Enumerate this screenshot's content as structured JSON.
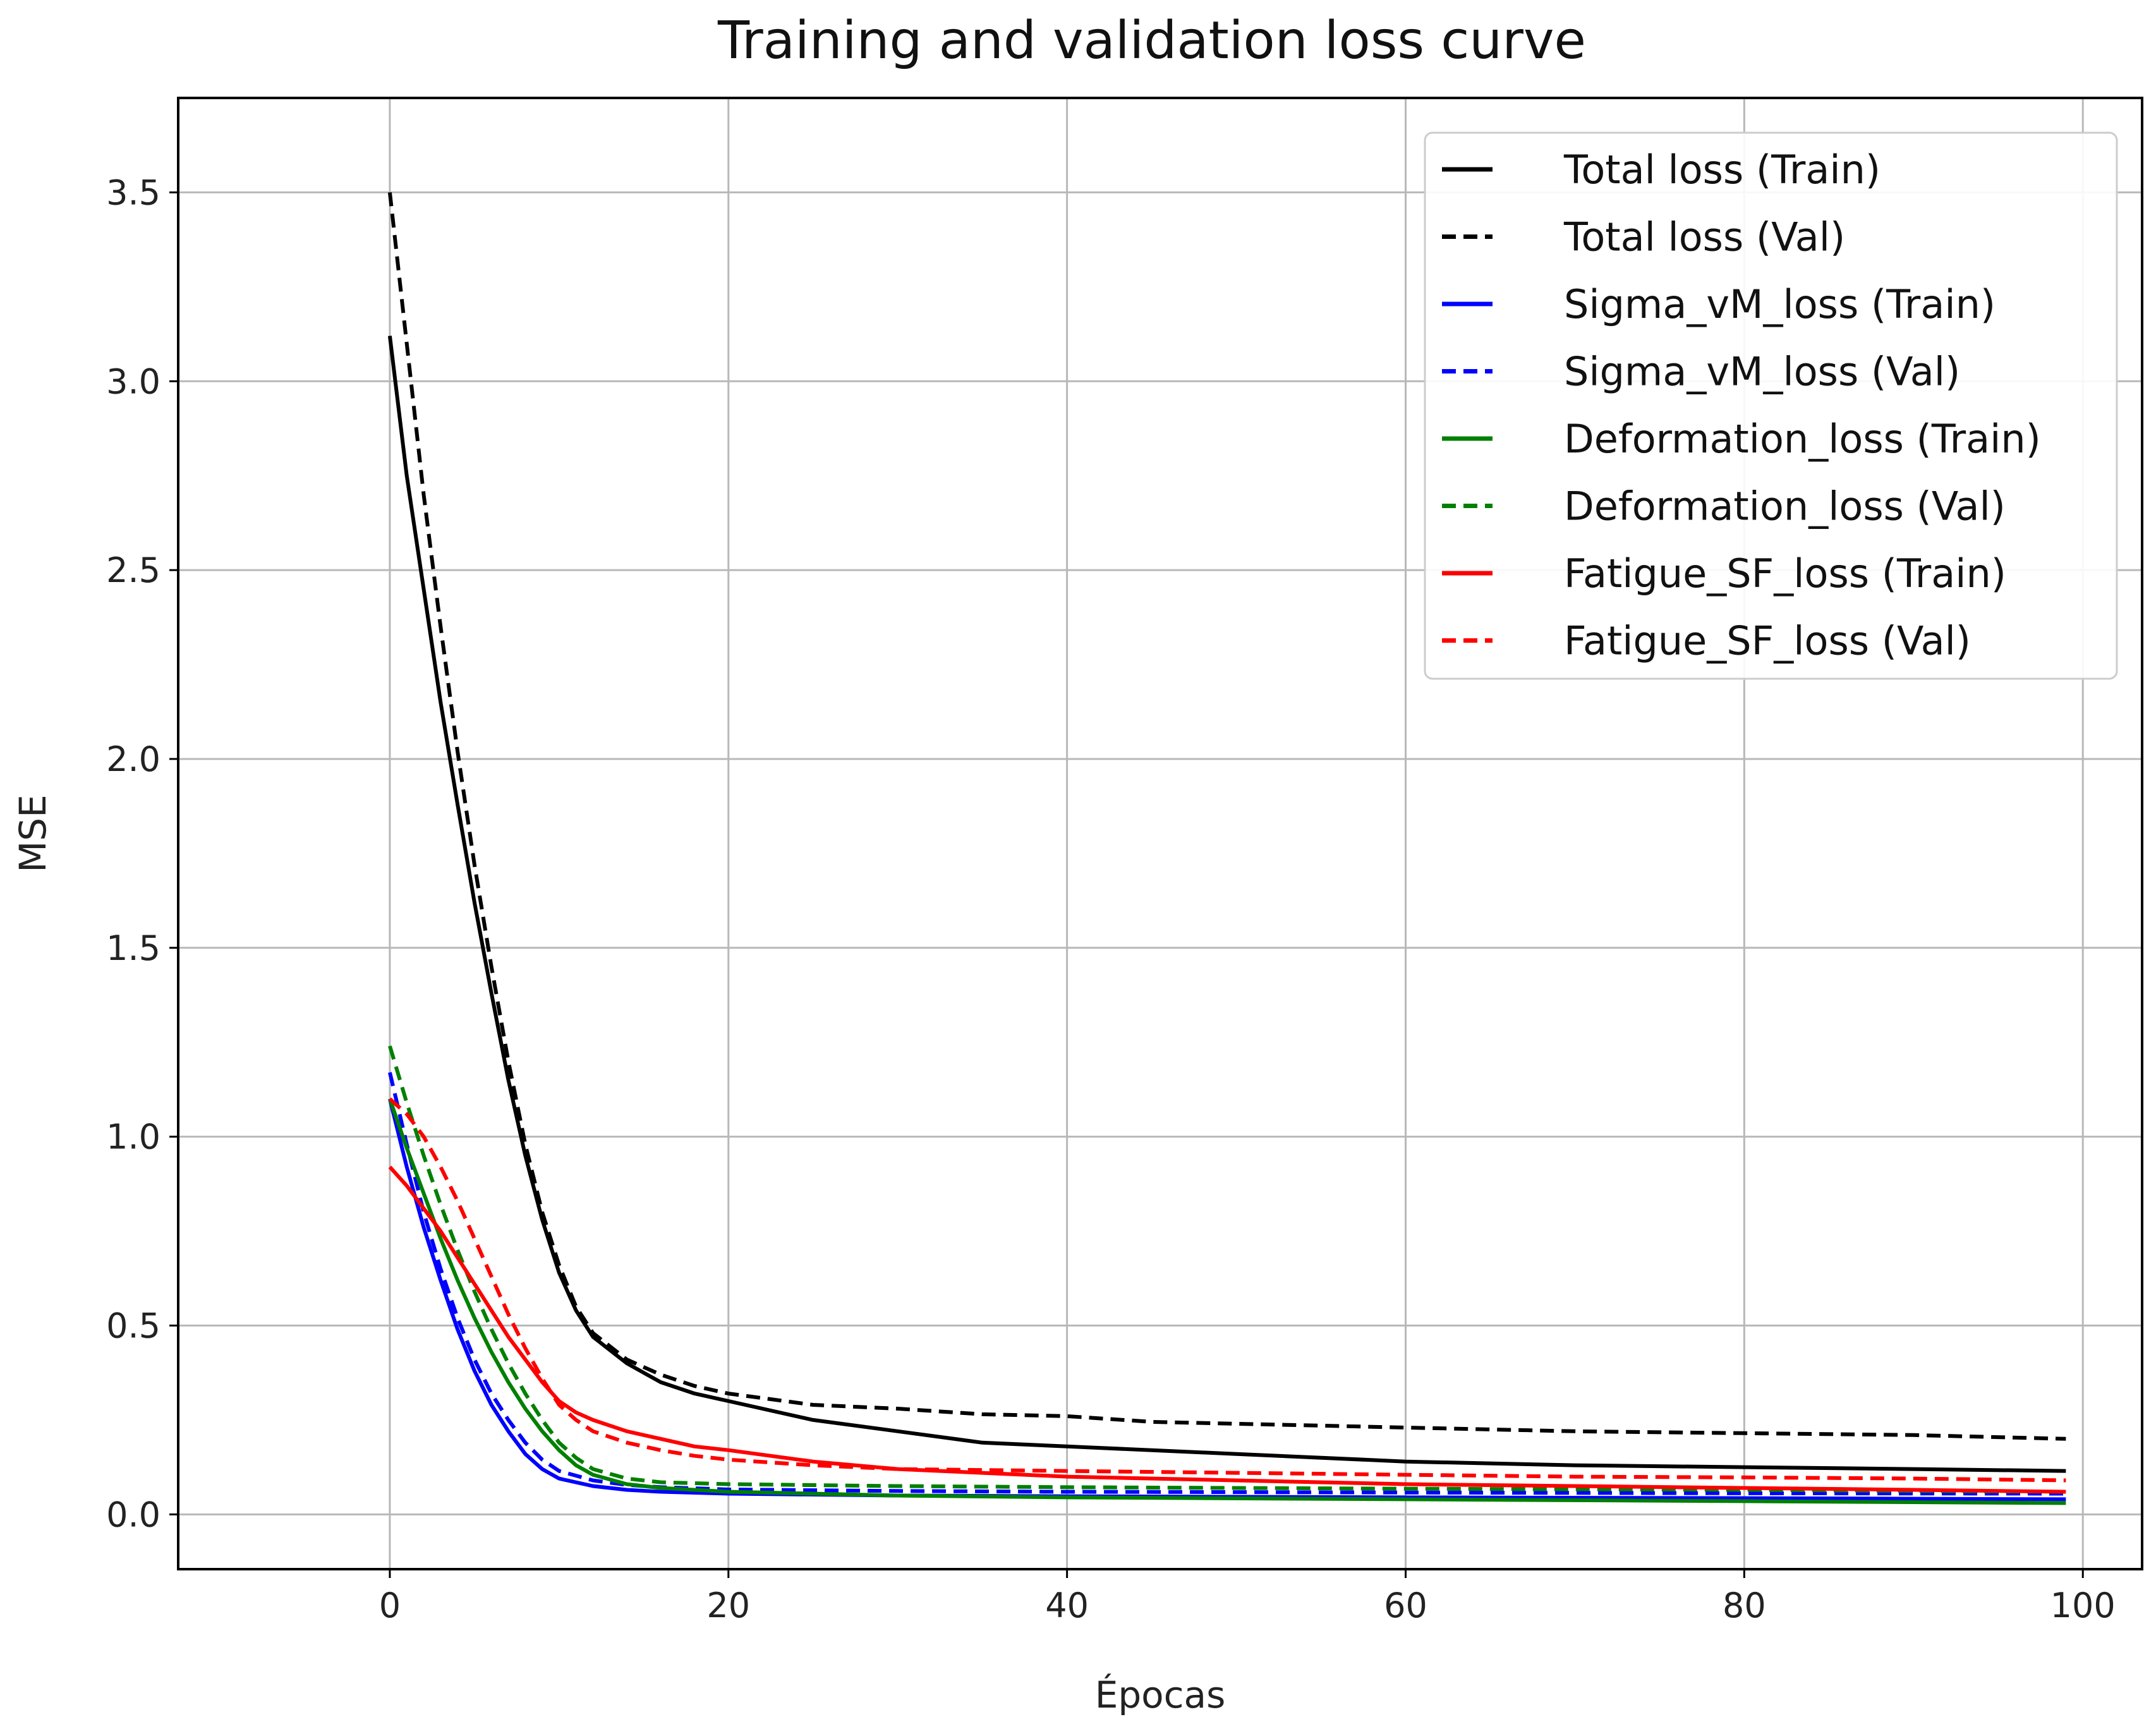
{
  "chart_data": {
    "type": "line",
    "title": "Training and validation loss curve",
    "xlabel": "Épocas",
    "ylabel": "MSE",
    "xlim": [
      -12.5,
      103.5
    ],
    "ylim": [
      -0.145,
      3.75
    ],
    "xticks": [
      0,
      20,
      40,
      60,
      80,
      100
    ],
    "xtick_labels": [
      "0",
      "20",
      "40",
      "60",
      "80",
      "100"
    ],
    "yticks": [
      0.0,
      0.5,
      1.0,
      1.5,
      2.0,
      2.5,
      3.0,
      3.5
    ],
    "ytick_labels": [
      "0.0",
      "0.5",
      "1.0",
      "1.5",
      "2.0",
      "2.5",
      "3.0",
      "3.5"
    ],
    "grid": true,
    "legend_position": "top-right",
    "series": [
      {
        "name": "Total loss (Train)",
        "color": "#000000",
        "style": "solid",
        "x": [
          0,
          1,
          2,
          3,
          4,
          5,
          6,
          7,
          8,
          9,
          10,
          11,
          12,
          14,
          16,
          18,
          20,
          25,
          30,
          35,
          40,
          50,
          60,
          70,
          80,
          90,
          99
        ],
        "y": [
          3.12,
          2.75,
          2.45,
          2.15,
          1.88,
          1.62,
          1.38,
          1.15,
          0.95,
          0.78,
          0.64,
          0.54,
          0.47,
          0.4,
          0.35,
          0.32,
          0.3,
          0.25,
          0.22,
          0.19,
          0.18,
          0.16,
          0.14,
          0.13,
          0.125,
          0.12,
          0.115
        ]
      },
      {
        "name": "Total loss (Val)",
        "color": "#000000",
        "style": "dashed",
        "x": [
          0,
          1,
          2,
          3,
          4,
          5,
          6,
          7,
          8,
          9,
          10,
          11,
          12,
          14,
          16,
          18,
          20,
          25,
          30,
          35,
          40,
          45,
          50,
          55,
          60,
          70,
          80,
          90,
          99
        ],
        "y": [
          3.5,
          3.1,
          2.7,
          2.35,
          2.02,
          1.72,
          1.45,
          1.2,
          0.98,
          0.8,
          0.66,
          0.55,
          0.48,
          0.41,
          0.37,
          0.34,
          0.32,
          0.29,
          0.28,
          0.265,
          0.26,
          0.245,
          0.24,
          0.235,
          0.23,
          0.22,
          0.215,
          0.21,
          0.2
        ]
      },
      {
        "name": "Sigma_vM_loss (Train)",
        "color": "#0000ff",
        "style": "solid",
        "x": [
          0,
          1,
          2,
          3,
          4,
          5,
          6,
          7,
          8,
          9,
          10,
          12,
          14,
          16,
          20,
          30,
          40,
          60,
          80,
          99
        ],
        "y": [
          1.1,
          0.92,
          0.76,
          0.62,
          0.49,
          0.38,
          0.29,
          0.22,
          0.16,
          0.12,
          0.095,
          0.075,
          0.065,
          0.06,
          0.055,
          0.05,
          0.048,
          0.045,
          0.043,
          0.04
        ]
      },
      {
        "name": "Sigma_vM_loss (Val)",
        "color": "#0000ff",
        "style": "dashed",
        "x": [
          0,
          1,
          2,
          3,
          4,
          5,
          6,
          7,
          8,
          9,
          10,
          12,
          14,
          16,
          20,
          30,
          40,
          60,
          80,
          99
        ],
        "y": [
          1.17,
          0.98,
          0.8,
          0.65,
          0.52,
          0.41,
          0.32,
          0.25,
          0.19,
          0.145,
          0.115,
          0.09,
          0.078,
          0.072,
          0.066,
          0.062,
          0.06,
          0.058,
          0.056,
          0.055
        ]
      },
      {
        "name": "Deformation_loss (Train)",
        "color": "#008000",
        "style": "solid",
        "x": [
          0,
          1,
          2,
          3,
          4,
          5,
          6,
          7,
          8,
          9,
          10,
          11,
          12,
          14,
          16,
          20,
          30,
          40,
          60,
          80,
          99
        ],
        "y": [
          1.1,
          0.97,
          0.85,
          0.73,
          0.62,
          0.52,
          0.43,
          0.35,
          0.28,
          0.22,
          0.17,
          0.13,
          0.105,
          0.08,
          0.07,
          0.06,
          0.05,
          0.045,
          0.04,
          0.035,
          0.03
        ]
      },
      {
        "name": "Deformation_loss (Val)",
        "color": "#008000",
        "style": "dashed",
        "x": [
          0,
          1,
          2,
          3,
          4,
          5,
          6,
          7,
          8,
          9,
          10,
          11,
          12,
          14,
          16,
          20,
          30,
          40,
          60,
          80,
          99
        ],
        "y": [
          1.24,
          1.09,
          0.95,
          0.82,
          0.7,
          0.59,
          0.49,
          0.4,
          0.32,
          0.25,
          0.19,
          0.15,
          0.12,
          0.095,
          0.085,
          0.08,
          0.075,
          0.072,
          0.068,
          0.065,
          0.06
        ]
      },
      {
        "name": "Fatigue_SF_loss (Train)",
        "color": "#ff0000",
        "style": "solid",
        "x": [
          0,
          1,
          2,
          3,
          4,
          5,
          6,
          7,
          8,
          9,
          10,
          11,
          12,
          14,
          16,
          18,
          20,
          25,
          30,
          40,
          50,
          60,
          70,
          80,
          90,
          99
        ],
        "y": [
          0.92,
          0.87,
          0.81,
          0.75,
          0.68,
          0.61,
          0.54,
          0.47,
          0.41,
          0.35,
          0.3,
          0.27,
          0.25,
          0.22,
          0.2,
          0.18,
          0.17,
          0.14,
          0.12,
          0.1,
          0.09,
          0.08,
          0.075,
          0.07,
          0.065,
          0.06
        ]
      },
      {
        "name": "Fatigue_SF_loss (Val)",
        "color": "#ff0000",
        "style": "dashed",
        "x": [
          0,
          1,
          2,
          3,
          4,
          5,
          6,
          7,
          8,
          9,
          10,
          11,
          12,
          14,
          16,
          18,
          20,
          25,
          30,
          40,
          50,
          60,
          70,
          80,
          90,
          99
        ],
        "y": [
          1.1,
          1.06,
          1.0,
          0.92,
          0.83,
          0.73,
          0.63,
          0.53,
          0.44,
          0.36,
          0.29,
          0.25,
          0.22,
          0.19,
          0.17,
          0.155,
          0.145,
          0.13,
          0.12,
          0.115,
          0.11,
          0.105,
          0.1,
          0.098,
          0.095,
          0.09
        ]
      }
    ]
  }
}
